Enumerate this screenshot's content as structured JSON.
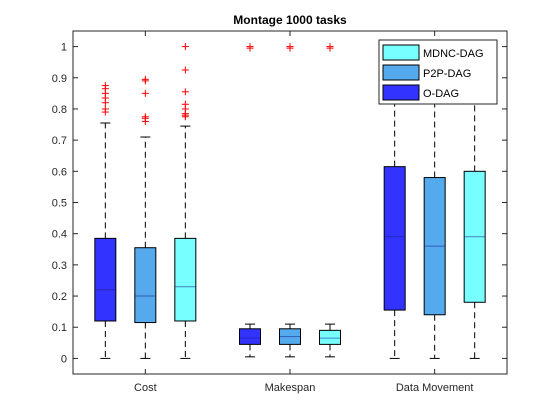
{
  "chart_data": {
    "type": "boxplot",
    "title": "Montage 1000 tasks",
    "categories": [
      "Cost",
      "Makespan",
      "Data Movement"
    ],
    "ylim": [
      -0.05,
      1.05
    ],
    "yticks": [
      0,
      0.1,
      0.2,
      0.3,
      0.4,
      0.5,
      0.6,
      0.7,
      0.8,
      0.9,
      1
    ],
    "ytick_labels": [
      "0",
      "0.1",
      "0.2",
      "0.3",
      "0.4",
      "0.5",
      "0.6",
      "0.7",
      "0.8",
      "0.9",
      "1"
    ],
    "grid": false,
    "legend_position": "top-right",
    "series": [
      {
        "name": "O-DAG",
        "color": "#3333ff",
        "boxes": [
          {
            "whisker_low": 0,
            "q1": 0.12,
            "median": 0.22,
            "q3": 0.385,
            "whisker_high": 0.755,
            "outliers": [
              0.79,
              0.8,
              0.82,
              0.835,
              0.85,
              0.865,
              0.875
            ]
          },
          {
            "whisker_low": 0.005,
            "q1": 0.045,
            "median": 0.065,
            "q3": 0.095,
            "whisker_high": 0.11,
            "outliers": [
              0.995,
              1.0
            ]
          },
          {
            "whisker_low": 0,
            "q1": 0.155,
            "median": 0.39,
            "q3": 0.615,
            "whisker_high": 1.0,
            "outliers": []
          }
        ]
      },
      {
        "name": "P2P-DAG",
        "color": "#55aaee",
        "boxes": [
          {
            "whisker_low": 0,
            "q1": 0.115,
            "median": 0.2,
            "q3": 0.355,
            "whisker_high": 0.71,
            "outliers": [
              0.76,
              0.77,
              0.775,
              0.85,
              0.89,
              0.895
            ]
          },
          {
            "whisker_low": 0.005,
            "q1": 0.045,
            "median": 0.07,
            "q3": 0.095,
            "whisker_high": 0.11,
            "outliers": [
              0.995,
              1.0
            ]
          },
          {
            "whisker_low": 0,
            "q1": 0.14,
            "median": 0.36,
            "q3": 0.58,
            "whisker_high": 1.0,
            "outliers": []
          }
        ]
      },
      {
        "name": "MDNC-DAG",
        "color": "#77ffff",
        "boxes": [
          {
            "whisker_low": 0,
            "q1": 0.12,
            "median": 0.23,
            "q3": 0.385,
            "whisker_high": 0.745,
            "outliers": [
              0.775,
              0.78,
              0.785,
              0.8,
              0.815,
              0.855,
              0.925,
              1.0
            ]
          },
          {
            "whisker_low": 0.005,
            "q1": 0.045,
            "median": 0.065,
            "q3": 0.09,
            "whisker_high": 0.11,
            "outliers": [
              0.995,
              1.0
            ]
          },
          {
            "whisker_low": 0,
            "q1": 0.18,
            "median": 0.39,
            "q3": 0.6,
            "whisker_high": 1.0,
            "outliers": []
          }
        ]
      }
    ],
    "legend_order": [
      "MDNC-DAG",
      "P2P-DAG",
      "O-DAG"
    ],
    "colors": {
      "outlier": "#ff0000",
      "whisker": "#000000",
      "median": "#1a1a8c"
    }
  }
}
